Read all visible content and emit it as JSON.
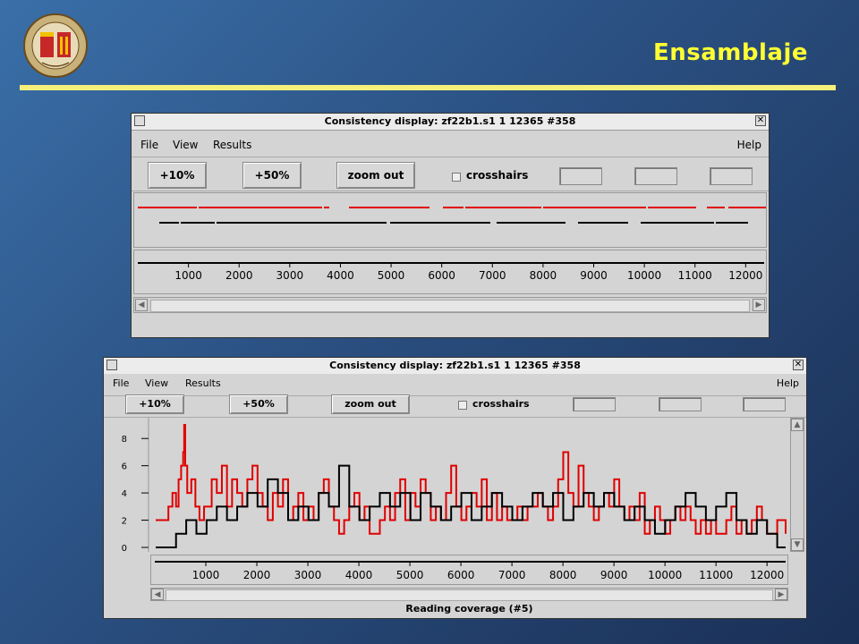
{
  "slide": {
    "title": "Ensamblaje"
  },
  "window1": {
    "title": "Consistency display: zf22b1.s1 1 12365 #358",
    "close_glyph": "✕",
    "menu": {
      "file": "File",
      "view": "View",
      "results": "Results",
      "help": "Help"
    },
    "toolbar": {
      "zoom10": "+10%",
      "zoom50": "+50%",
      "zoom_out": "zoom out",
      "crosshairs": "crosshairs"
    },
    "ruler_ticks": [
      "1000",
      "2000",
      "3000",
      "4000",
      "5000",
      "6000",
      "7000",
      "8000",
      "9000",
      "10000",
      "11000",
      "12000"
    ],
    "scroll_left": "◀",
    "scroll_right": "▶"
  },
  "window2": {
    "title": "Consistency display: zf22b1.s1 1 12365 #358",
    "close_glyph": "✕",
    "menu": {
      "file": "File",
      "view": "View",
      "results": "Results",
      "help": "Help"
    },
    "toolbar": {
      "zoom10": "+10%",
      "zoom50": "+50%",
      "zoom_out": "zoom out",
      "crosshairs": "crosshairs"
    },
    "ruler_ticks": [
      "1000",
      "2000",
      "3000",
      "4000",
      "5000",
      "6000",
      "7000",
      "8000",
      "9000",
      "10000",
      "11000",
      "12000"
    ],
    "status": "Reading coverage (#5)",
    "scroll_left": "◀",
    "scroll_right": "▶",
    "scroll_up": "▲",
    "scroll_down": "▼"
  },
  "colors": {
    "forward_strand": "#e00000",
    "reverse_strand": "#000000",
    "slide_title": "#ffff33",
    "rule": "#f5f07a"
  },
  "chart_data": {
    "type": "line",
    "title": "Reading coverage (#5)",
    "xlabel": "",
    "ylabel": "",
    "xlim": [
      1,
      12365
    ],
    "ylim": [
      0,
      9
    ],
    "yticks": [
      0,
      2,
      4,
      6,
      8
    ],
    "xticks": [
      1000,
      2000,
      3000,
      4000,
      5000,
      6000,
      7000,
      8000,
      9000,
      10000,
      11000,
      12000
    ],
    "series": [
      {
        "color": "#e00000",
        "x": [
          1,
          80,
          250,
          330,
          400,
          450,
          500,
          540,
          560,
          580,
          620,
          700,
          780,
          860,
          950,
          1100,
          1200,
          1300,
          1400,
          1500,
          1600,
          1700,
          1800,
          1900,
          2000,
          2100,
          2200,
          2300,
          2400,
          2500,
          2600,
          2700,
          2800,
          2900,
          3000,
          3100,
          3200,
          3300,
          3400,
          3500,
          3600,
          3700,
          3800,
          3900,
          4000,
          4100,
          4200,
          4300,
          4400,
          4500,
          4600,
          4700,
          4800,
          4900,
          5000,
          5100,
          5200,
          5300,
          5400,
          5500,
          5600,
          5700,
          5800,
          5900,
          6000,
          6100,
          6200,
          6300,
          6400,
          6500,
          6600,
          6700,
          6800,
          6900,
          7000,
          7100,
          7200,
          7300,
          7400,
          7500,
          7600,
          7700,
          7800,
          7900,
          8000,
          8100,
          8200,
          8300,
          8400,
          8500,
          8600,
          8700,
          8800,
          8900,
          9000,
          9100,
          9200,
          9300,
          9400,
          9500,
          9600,
          9700,
          9800,
          9900,
          10000,
          10100,
          10200,
          10300,
          10400,
          10500,
          10600,
          10700,
          10800,
          10900,
          11000,
          11100,
          11200,
          11300,
          11400,
          11500,
          11600,
          11700,
          11800,
          11900,
          12000,
          12100,
          12200,
          12365
        ],
        "y": [
          2,
          2,
          3,
          4,
          3,
          5,
          6,
          7,
          9,
          6,
          4,
          5,
          3,
          2,
          3,
          5,
          4,
          6,
          3,
          5,
          4,
          3,
          5,
          6,
          4,
          3,
          2,
          4,
          3,
          5,
          2,
          3,
          4,
          2,
          3,
          2,
          4,
          5,
          3,
          2,
          1,
          2,
          3,
          4,
          2,
          3,
          1,
          1,
          2,
          3,
          2,
          4,
          5,
          2,
          4,
          3,
          5,
          4,
          2,
          3,
          2,
          4,
          6,
          3,
          2,
          3,
          4,
          3,
          5,
          2,
          4,
          2,
          3,
          2,
          2,
          3,
          2,
          3,
          3,
          4,
          3,
          2,
          3,
          5,
          7,
          4,
          3,
          6,
          4,
          3,
          2,
          3,
          4,
          3,
          5,
          3,
          2,
          3,
          2,
          4,
          1,
          2,
          3,
          2,
          1,
          2,
          3,
          2,
          3,
          2,
          1,
          2,
          1,
          2,
          1,
          1,
          2,
          3,
          1,
          2,
          1,
          2,
          3,
          2,
          1,
          1,
          2,
          1
        ]
      },
      {
        "color": "#000000",
        "x": [
          1,
          200,
          400,
          600,
          800,
          1000,
          1200,
          1400,
          1600,
          1800,
          2000,
          2200,
          2400,
          2600,
          2800,
          3000,
          3200,
          3400,
          3600,
          3800,
          4000,
          4200,
          4400,
          4600,
          4800,
          5000,
          5200,
          5400,
          5600,
          5800,
          6000,
          6200,
          6400,
          6600,
          6800,
          7000,
          7200,
          7400,
          7600,
          7800,
          8000,
          8200,
          8400,
          8600,
          8800,
          9000,
          9200,
          9400,
          9600,
          9800,
          10000,
          10200,
          10400,
          10600,
          10800,
          11000,
          11200,
          11400,
          11600,
          11800,
          12000,
          12200,
          12365
        ],
        "y": [
          0,
          0,
          1,
          2,
          1,
          2,
          3,
          2,
          3,
          4,
          3,
          5,
          4,
          2,
          3,
          2,
          4,
          3,
          6,
          3,
          2,
          3,
          4,
          3,
          4,
          2,
          4,
          3,
          2,
          3,
          4,
          2,
          3,
          4,
          3,
          2,
          3,
          4,
          3,
          4,
          2,
          3,
          4,
          3,
          4,
          3,
          2,
          3,
          2,
          1,
          2,
          3,
          4,
          3,
          2,
          3,
          4,
          2,
          1,
          2,
          1,
          0,
          0
        ]
      }
    ]
  }
}
